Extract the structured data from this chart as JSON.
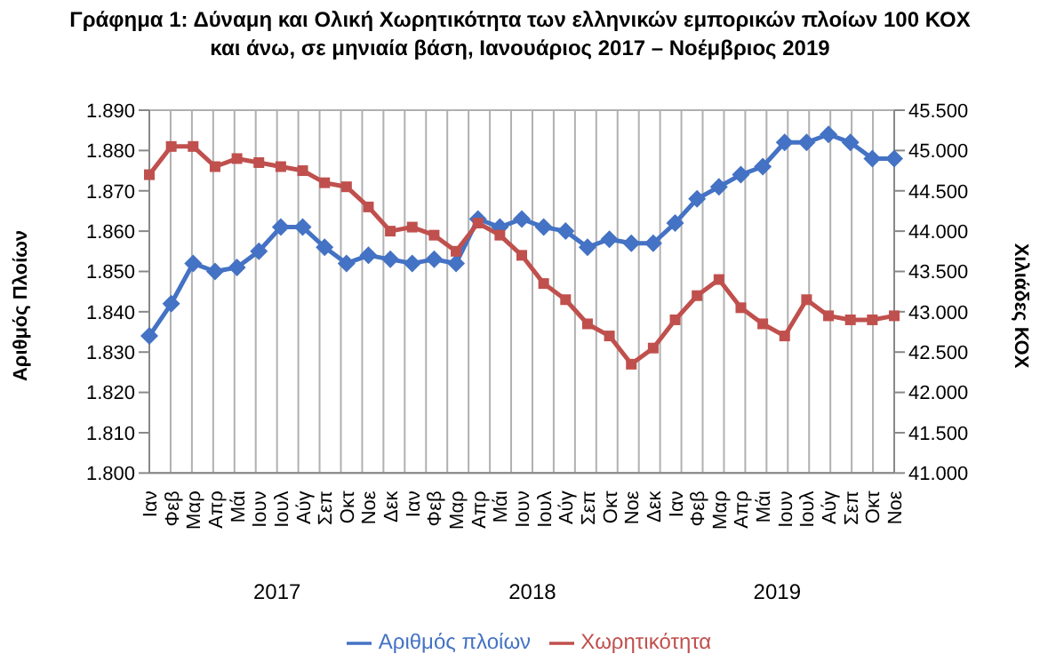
{
  "chart_data": {
    "type": "line",
    "title": "Γράφημα 1: Δύναμη και Ολική Χωρητικότητα των ελληνικών εμπορικών πλοίων 100 ΚΟΧ",
    "subtitle": "και άνω, σε μηνιαία βάση, Ιανουάριος 2017 – Νοέμβριος 2019",
    "categories": [
      "Ιαν",
      "Φεβ",
      "Μαρ",
      "Απρ",
      "Μάι",
      "Ιουν",
      "Ιουλ",
      "Αύγ",
      "Σεπ",
      "Οκτ",
      "Νοε",
      "Δεκ",
      "Ιαν",
      "Φεβ",
      "Μαρ",
      "Απρ",
      "Μάι",
      "Ιουν",
      "Ιουλ",
      "Αύγ",
      "Σεπ",
      "Οκτ",
      "Νοε",
      "Δεκ",
      "Ιαν",
      "Φεβ",
      "Μαρ",
      "Απρ",
      "Μάι",
      "Ιουν",
      "Ιουλ",
      "Αύγ",
      "Σεπ",
      "Οκτ",
      "Νοε"
    ],
    "annotations": [
      "2017",
      "2018",
      "2019"
    ],
    "ylabel": "Αριθμός Πλοίων",
    "y2label": "Χιλιάδες ΚΟΧ",
    "series": [
      {
        "name": "Αριθμός πλοίων",
        "color": "#4472c4",
        "marker": "diamond",
        "values": [
          1834,
          1842,
          1852,
          1850,
          1851,
          1855,
          1861,
          1861,
          1856,
          1852,
          1854,
          1853,
          1852,
          1853,
          1852,
          1863,
          1861,
          1863,
          1861,
          1860,
          1856,
          1858,
          1857,
          1857,
          1862,
          1868,
          1871,
          1874,
          1876,
          1882,
          1882,
          1884,
          1882,
          1878,
          1878
        ]
      },
      {
        "name": "Χωρητικότητα",
        "color": "#c0504d",
        "marker": "square",
        "axis": "y2",
        "values": [
          44700,
          45050,
          45050,
          44800,
          44900,
          44850,
          44800,
          44750,
          44600,
          44550,
          44300,
          44000,
          44050,
          43950,
          43750,
          44100,
          43950,
          43700,
          43350,
          43150,
          42850,
          42700,
          42350,
          42550,
          42900,
          43200,
          43400,
          43050,
          42850,
          42700,
          43150,
          42950,
          42900,
          42900,
          42950
        ]
      }
    ],
    "ylim": [
      1800,
      1890
    ],
    "yticks": [
      {
        "value": 1800,
        "label": "1.800"
      },
      {
        "value": 1810,
        "label": "1.810"
      },
      {
        "value": 1820,
        "label": "1.820"
      },
      {
        "value": 1830,
        "label": "1.830"
      },
      {
        "value": 1840,
        "label": "1.840"
      },
      {
        "value": 1850,
        "label": "1.850"
      },
      {
        "value": 1860,
        "label": "1.860"
      },
      {
        "value": 1870,
        "label": "1.870"
      },
      {
        "value": 1880,
        "label": "1.880"
      },
      {
        "value": 1890,
        "label": "1.890"
      }
    ],
    "y2lim": [
      41000,
      45500
    ],
    "y2ticks": [
      {
        "value": 41000,
        "label": "41.000"
      },
      {
        "value": 41500,
        "label": "41.500"
      },
      {
        "value": 42000,
        "label": "42.000"
      },
      {
        "value": 42500,
        "label": "42.500"
      },
      {
        "value": 43000,
        "label": "43.000"
      },
      {
        "value": 43500,
        "label": "43.500"
      },
      {
        "value": 44000,
        "label": "44.000"
      },
      {
        "value": 44500,
        "label": "44.500"
      },
      {
        "value": 45000,
        "label": "45.000"
      },
      {
        "value": 45500,
        "label": "45.500"
      }
    ],
    "grid": true,
    "legend": "bottom"
  }
}
